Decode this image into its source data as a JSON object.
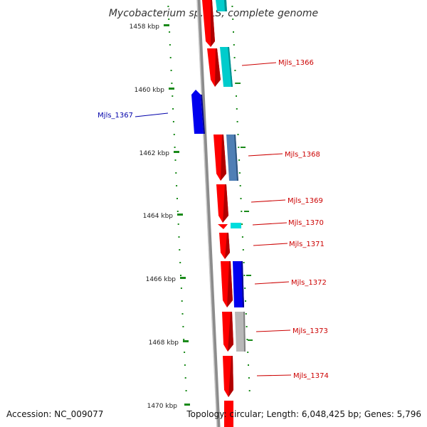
{
  "title": "Mycobacterium sp. JLS, complete genome",
  "footer": {
    "accession": "Accession: NC_009077",
    "summary": "Topology: circular; Length: 6,048,425 bp; Genes: 5,796"
  },
  "colors": {
    "tick": "#1a8a1a",
    "backbone": "#8c8c8c",
    "forward_strand": "#ff0000",
    "label_red": "#cc0000",
    "label_blue": "#0000aa"
  },
  "ticks": [
    {
      "label": "1458 kbp",
      "value": 1458
    },
    {
      "label": "1460 kbp",
      "value": 1460
    },
    {
      "label": "1462 kbp",
      "value": 1462
    },
    {
      "label": "1464 kbp",
      "value": 1464
    },
    {
      "label": "1466 kbp",
      "value": 1466
    },
    {
      "label": "1468 kbp",
      "value": 1468
    },
    {
      "label": "1470 kbp",
      "value": 1470
    }
  ],
  "labels": [
    {
      "name": "Mjls_1366",
      "color": "#cc0000"
    },
    {
      "name": "Mjls_1367",
      "color": "#0000aa"
    },
    {
      "name": "Mjls_1368",
      "color": "#cc0000"
    },
    {
      "name": "Mjls_1369",
      "color": "#cc0000"
    },
    {
      "name": "Mjls_1370",
      "color": "#cc0000"
    },
    {
      "name": "Mjls_1371",
      "color": "#cc0000"
    },
    {
      "name": "Mjls_1372",
      "color": "#cc0000"
    },
    {
      "name": "Mjls_1373",
      "color": "#cc0000"
    },
    {
      "name": "Mjls_1374",
      "color": "#cc0000"
    }
  ]
}
